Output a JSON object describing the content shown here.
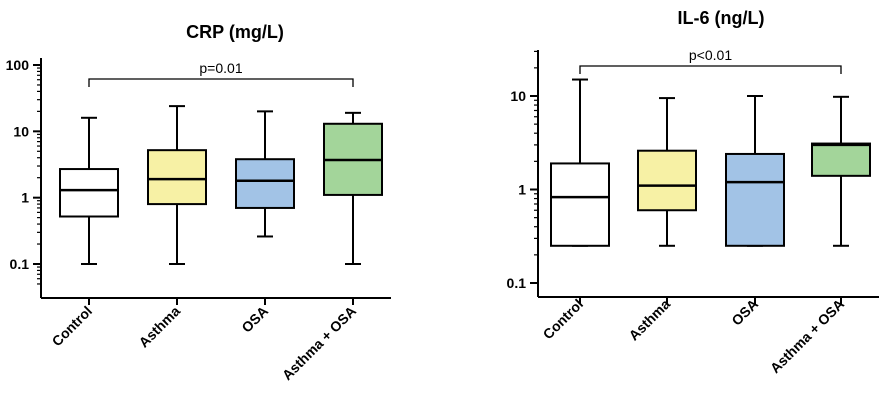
{
  "chart_data": [
    {
      "type": "box",
      "title": "CRP (mg/L)",
      "xlabel": "",
      "ylabel": "",
      "yscale": "log",
      "ylim": [
        0.05,
        100
      ],
      "yticks": [
        0.1,
        1,
        10,
        100
      ],
      "ytick_labels": [
        "0.1",
        "1",
        "10",
        "100"
      ],
      "categories": [
        "Control",
        "Asthma",
        "OSA",
        "Asthma + OSA"
      ],
      "colors": [
        "#ffffff",
        "#f7f1a5",
        "#a2c3e6",
        "#a3d59a"
      ],
      "boxes": [
        {
          "min": 0.1,
          "q1": 0.52,
          "median": 1.3,
          "q3": 2.7,
          "max": 16
        },
        {
          "min": 0.1,
          "q1": 0.8,
          "median": 1.9,
          "q3": 5.2,
          "max": 24
        },
        {
          "min": 0.26,
          "q1": 0.7,
          "median": 1.8,
          "q3": 3.8,
          "max": 20
        },
        {
          "min": 0.1,
          "q1": 1.1,
          "median": 3.7,
          "q3": 13,
          "max": 19
        }
      ],
      "annotation": {
        "text": "p=0.01",
        "from": "Control",
        "to": "Asthma + OSA"
      }
    },
    {
      "type": "box",
      "title": "IL-6 (ng/L)",
      "xlabel": "",
      "ylabel": "",
      "yscale": "log",
      "ylim": [
        0.1,
        40
      ],
      "yticks": [
        0.1,
        1,
        10
      ],
      "ytick_labels": [
        "0.1",
        "1",
        "10"
      ],
      "categories": [
        "Control",
        "Asthma",
        "OSA",
        "Asthma + OSA"
      ],
      "colors": [
        "#ffffff",
        "#f7f1a5",
        "#a2c3e6",
        "#a3d59a"
      ],
      "boxes": [
        {
          "min": 0.25,
          "q1": 0.25,
          "median": 0.83,
          "q3": 1.9,
          "max": 15
        },
        {
          "min": 0.25,
          "q1": 0.6,
          "median": 1.1,
          "q3": 2.6,
          "max": 9.5
        },
        {
          "min": 0.25,
          "q1": 0.25,
          "median": 1.2,
          "q3": 2.4,
          "max": 10
        },
        {
          "min": 0.25,
          "q1": 1.4,
          "median": 3.0,
          "q3": 3.1,
          "max": 9.8
        }
      ],
      "annotation": {
        "text": "p<0.01",
        "from": "Control",
        "to": "Asthma + OSA"
      }
    }
  ]
}
